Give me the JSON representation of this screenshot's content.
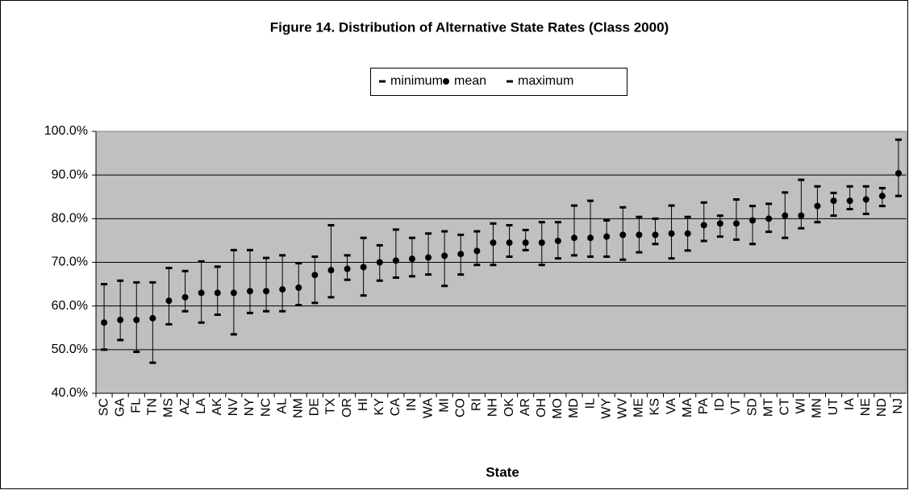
{
  "chart_data": {
    "type": "errorbar",
    "title": "Figure 14. Distribution of Alternative State Rates (Class 2000)",
    "x_label": "State",
    "categories": [
      "SC",
      "GA",
      "FL",
      "TN",
      "MS",
      "AZ",
      "LA",
      "AK",
      "NV",
      "NY",
      "NC",
      "AL",
      "NM",
      "DE",
      "TX",
      "OR",
      "HI",
      "KY",
      "CA",
      "IN",
      "WA",
      "MI",
      "CO",
      "RI",
      "NH",
      "OK",
      "AR",
      "OH",
      "MO",
      "MD",
      "IL",
      "WY",
      "WV",
      "ME",
      "KS",
      "VA",
      "MA",
      "PA",
      "ID",
      "VT",
      "SD",
      "MT",
      "CT",
      "WI",
      "MN",
      "UT",
      "IA",
      "NE",
      "ND",
      "NJ"
    ],
    "series": [
      {
        "name": "minimum",
        "color": "#000000",
        "values": [
          50,
          52.2,
          49.5,
          47,
          55.8,
          58.8,
          56.2,
          58,
          53.5,
          58.4,
          58.8,
          58.8,
          60.2,
          60.7,
          62,
          66,
          62.4,
          65.8,
          66.5,
          66.8,
          67.2,
          64.6,
          67.2,
          69.4,
          69.4,
          71.3,
          72.8,
          69.4,
          70.9,
          71.6,
          71.3,
          71.3,
          70.6,
          72.3,
          74.2,
          70.9,
          72.7,
          74.9,
          75.9,
          75.2,
          74.2,
          77,
          75.6,
          77.8,
          79.2,
          80.7,
          82.2,
          81.1,
          82.9,
          85.2
        ]
      },
      {
        "name": "mean",
        "color": "#000000",
        "values": [
          56.2,
          56.8,
          56.8,
          57.2,
          61.2,
          62,
          63,
          63,
          63,
          63.4,
          63.4,
          63.8,
          64.2,
          67.1,
          68.2,
          68.5,
          68.9,
          70,
          70.4,
          70.8,
          71.1,
          71.5,
          71.9,
          72.6,
          74.5,
          74.5,
          74.5,
          74.5,
          74.9,
          75.6,
          75.6,
          75.9,
          76.3,
          76.3,
          76.3,
          76.6,
          76.6,
          78.5,
          78.9,
          78.9,
          79.6,
          80,
          80.7,
          80.7,
          82.9,
          84.1,
          84.1,
          84.4,
          85.2,
          90.4
        ]
      },
      {
        "name": "maximum",
        "color": "#000000",
        "values": [
          65,
          65.8,
          65.4,
          65.4,
          68.7,
          68,
          70.2,
          69,
          72.8,
          72.8,
          71,
          71.6,
          69.8,
          71.3,
          78.5,
          71.6,
          75.6,
          73.9,
          77.5,
          75.6,
          76.6,
          77.1,
          76.3,
          77.1,
          78.9,
          78.5,
          77.4,
          79.2,
          79.2,
          83,
          84.1,
          79.6,
          82.6,
          80.4,
          80,
          83,
          80.4,
          83.7,
          80.7,
          84.4,
          82.9,
          83.4,
          86,
          88.9,
          87.4,
          85.9,
          87.4,
          87.4,
          87,
          98.1
        ]
      }
    ],
    "ylim": [
      40,
      100
    ],
    "yticks": [
      {
        "value": 40,
        "label": "40.0%"
      },
      {
        "value": 50,
        "label": "50.0%"
      },
      {
        "value": 60,
        "label": "60.0%"
      },
      {
        "value": 70,
        "label": "70.0%"
      },
      {
        "value": 80,
        "label": "80.0%"
      },
      {
        "value": 90,
        "label": "90.0%"
      },
      {
        "value": 100,
        "label": "100.0%"
      }
    ],
    "grid": true,
    "plot_background": "#c0c0c0"
  }
}
